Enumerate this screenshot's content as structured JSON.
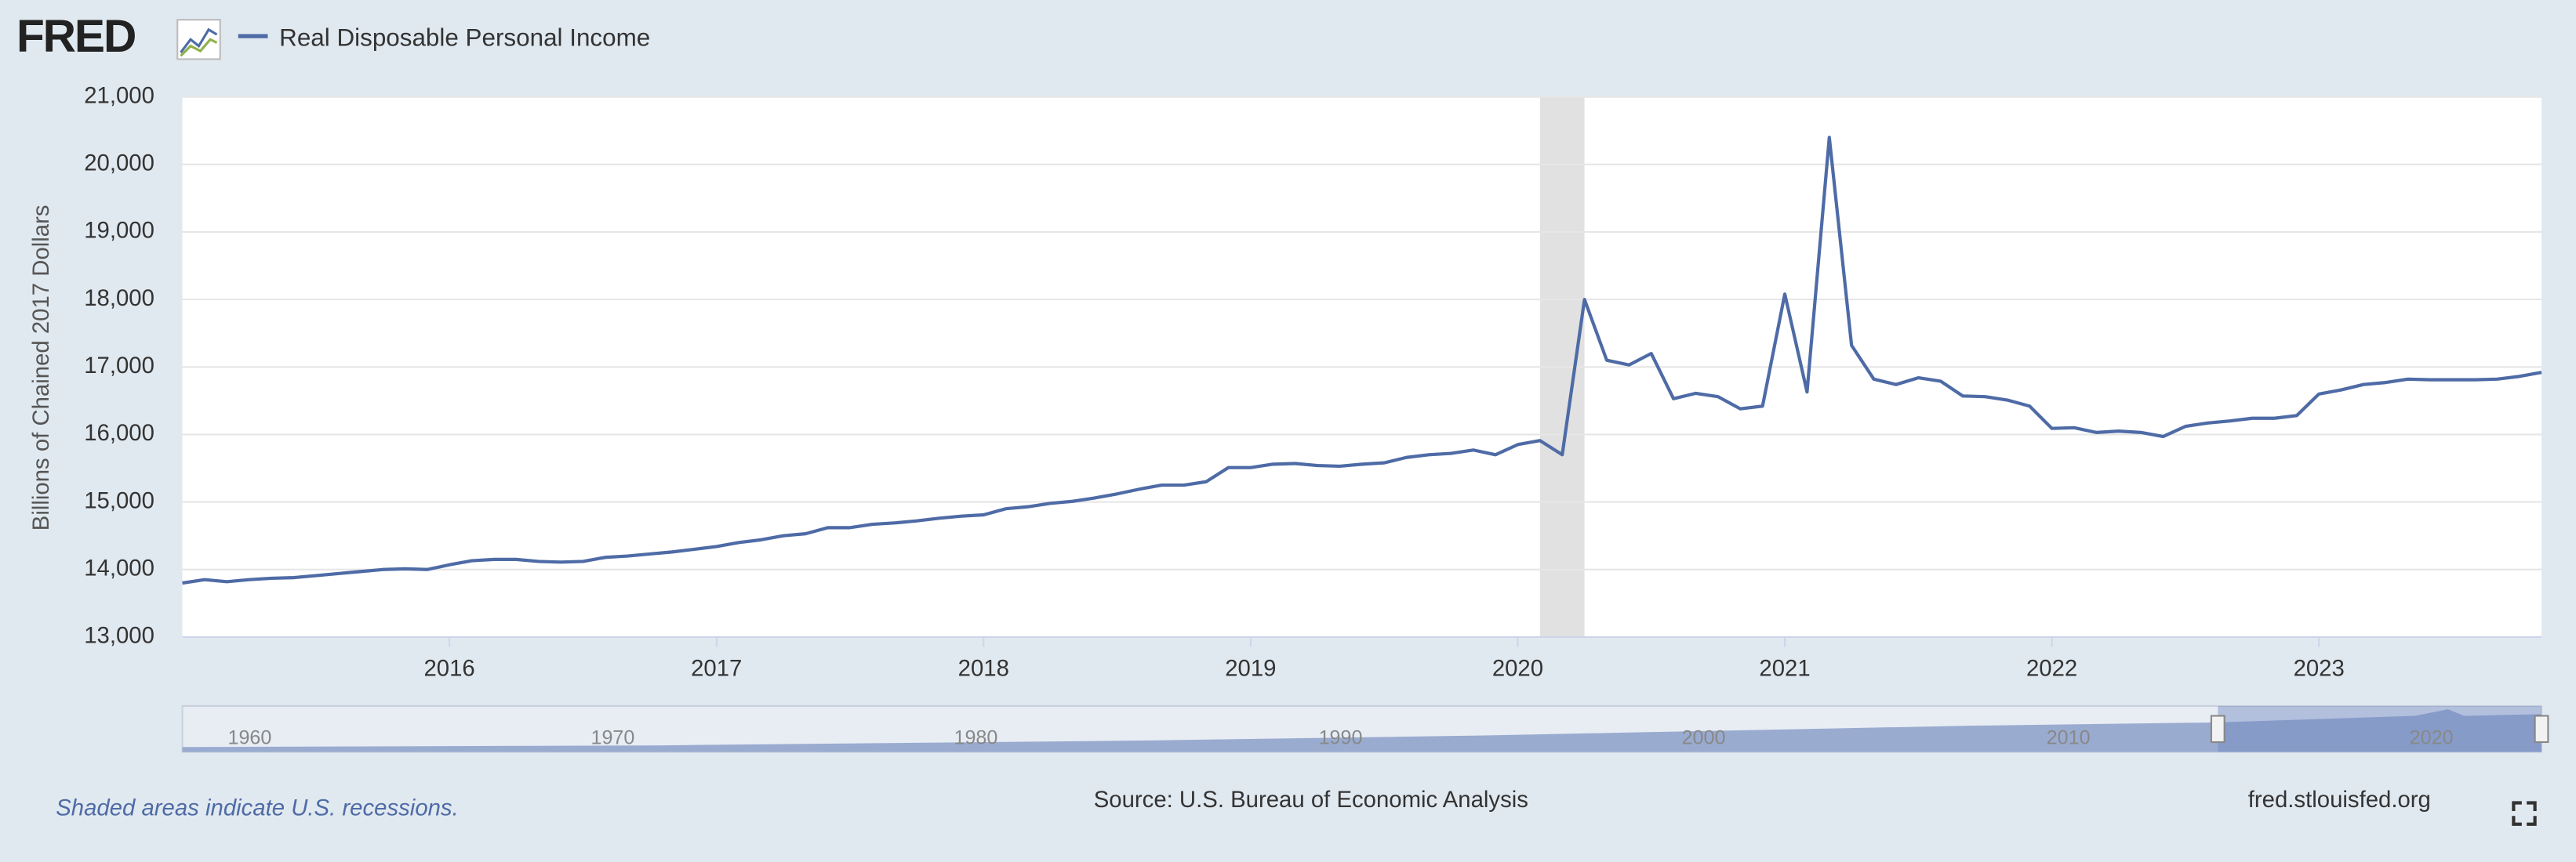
{
  "logo": "FRED",
  "chart_data": {
    "type": "line",
    "y_label": "Billions of Chained 2017 Dollars",
    "x": [
      "2015-01",
      "2015-02",
      "2015-03",
      "2015-04",
      "2015-05",
      "2015-06",
      "2015-07",
      "2015-08",
      "2015-09",
      "2015-10",
      "2015-11",
      "2015-12",
      "2016-01",
      "2016-02",
      "2016-03",
      "2016-04",
      "2016-05",
      "2016-06",
      "2016-07",
      "2016-08",
      "2016-09",
      "2016-10",
      "2016-11",
      "2016-12",
      "2017-01",
      "2017-02",
      "2017-03",
      "2017-04",
      "2017-05",
      "2017-06",
      "2017-07",
      "2017-08",
      "2017-09",
      "2017-10",
      "2017-11",
      "2017-12",
      "2018-01",
      "2018-02",
      "2018-03",
      "2018-04",
      "2018-05",
      "2018-06",
      "2018-07",
      "2018-08",
      "2018-09",
      "2018-10",
      "2018-11",
      "2018-12",
      "2019-01",
      "2019-02",
      "2019-03",
      "2019-04",
      "2019-05",
      "2019-06",
      "2019-07",
      "2019-08",
      "2019-09",
      "2019-10",
      "2019-11",
      "2019-12",
      "2020-01",
      "2020-02",
      "2020-03",
      "2020-04",
      "2020-05",
      "2020-06",
      "2020-07",
      "2020-08",
      "2020-09",
      "2020-10",
      "2020-11",
      "2020-12",
      "2021-01",
      "2021-02",
      "2021-03",
      "2021-04",
      "2021-05",
      "2021-06",
      "2021-07",
      "2021-08",
      "2021-09",
      "2021-10",
      "2021-11",
      "2021-12",
      "2022-01",
      "2022-02",
      "2022-03",
      "2022-04",
      "2022-05",
      "2022-06",
      "2022-07",
      "2022-08",
      "2022-09",
      "2022-10",
      "2022-11",
      "2022-12",
      "2023-01",
      "2023-02",
      "2023-03",
      "2023-04",
      "2023-05",
      "2023-06",
      "2023-07",
      "2023-08",
      "2023-09",
      "2023-10",
      "2023-11"
    ],
    "series": [
      {
        "name": "Real Disposable Personal Income",
        "color": "#4e6ba6",
        "values": [
          13800,
          13850,
          13820,
          13850,
          13870,
          13880,
          13910,
          13940,
          13970,
          14000,
          14010,
          14000,
          14070,
          14130,
          14150,
          14150,
          14120,
          14110,
          14120,
          14180,
          14200,
          14230,
          14260,
          14300,
          14340,
          14400,
          14440,
          14500,
          14530,
          14620,
          14620,
          14670,
          14690,
          14720,
          14760,
          14790,
          14810,
          14900,
          14930,
          14980,
          15010,
          15060,
          15120,
          15190,
          15250,
          15250,
          15300,
          15510,
          15510,
          15560,
          15570,
          15540,
          15530,
          15560,
          15580,
          15660,
          15700,
          15720,
          15770,
          15700,
          15850,
          15910,
          15700,
          18000,
          17100,
          17030,
          17200,
          16530,
          16610,
          16560,
          16380,
          16420,
          18080,
          16630,
          20400,
          17320,
          16820,
          16740,
          16840,
          16790,
          16570,
          16560,
          16510,
          16420,
          16090,
          16100,
          16030,
          16050,
          16030,
          15970,
          16120,
          16170,
          16200,
          16240,
          16240,
          16280,
          16600,
          16660,
          16740,
          16770,
          16820,
          16810,
          16810,
          16810,
          16820,
          16860,
          16920
        ]
      }
    ],
    "xlim": [
      "2015-01",
      "2023-11"
    ],
    "xticks": [
      2016,
      2017,
      2018,
      2019,
      2020,
      2021,
      2022,
      2023
    ],
    "ylim": [
      13000,
      21000
    ],
    "yticks": [
      {
        "value": 13000,
        "label": "13,000"
      },
      {
        "value": 14000,
        "label": "14,000"
      },
      {
        "value": 15000,
        "label": "15,000"
      },
      {
        "value": 16000,
        "label": "16,000"
      },
      {
        "value": 17000,
        "label": "17,000"
      },
      {
        "value": 18000,
        "label": "18,000"
      },
      {
        "value": 19000,
        "label": "19,000"
      },
      {
        "value": 20000,
        "label": "20,000"
      },
      {
        "value": 21000,
        "label": "21,000"
      }
    ],
    "grid": true,
    "recessions": [
      {
        "start": "2020-02",
        "end": "2020-04"
      }
    ]
  },
  "navigator": {
    "labels": [
      "1960",
      "1970",
      "1980",
      "1990",
      "2000",
      "2010",
      "2020"
    ]
  },
  "footer": {
    "note": "Shaded areas indicate U.S. recessions.",
    "source": "Source: U.S. Bureau of Economic Analysis",
    "site": "fred.stlouisfed.org"
  }
}
